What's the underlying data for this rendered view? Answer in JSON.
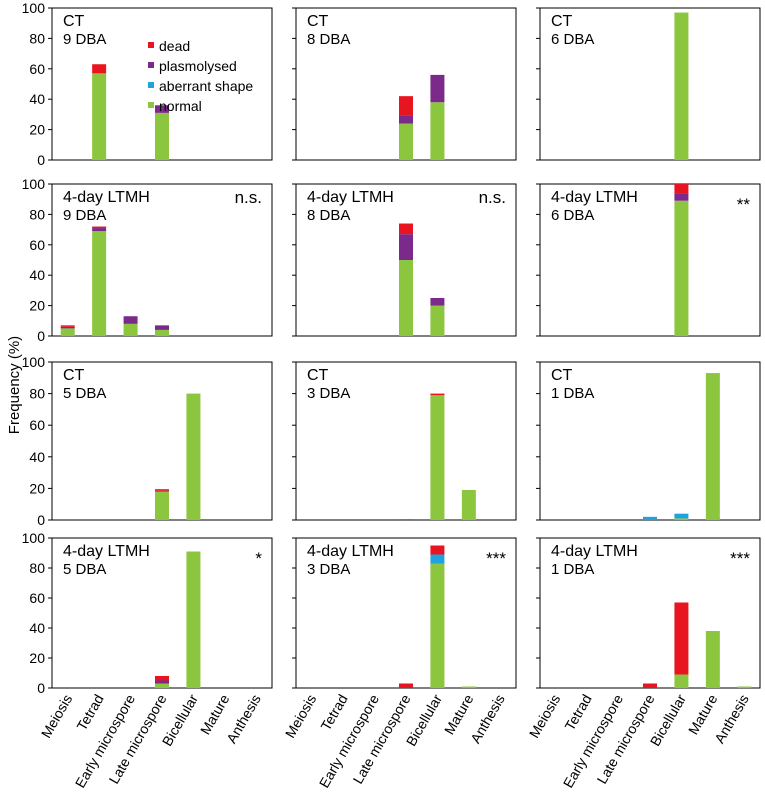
{
  "figure": {
    "ylabel": "Frequency (%)",
    "stage_labels": [
      "Meiosis",
      "Tetrad",
      "Early microspore",
      "Late microspore",
      "Bicellular",
      "Mature",
      "Anthesis"
    ],
    "legend": [
      {
        "key": "dead",
        "label": "dead",
        "color": "#e8141f"
      },
      {
        "key": "plasmolysed",
        "label": "plasmolysed",
        "color": "#7b2a8c"
      },
      {
        "key": "aberrant",
        "label": "aberrant shape",
        "color": "#1fa3e0"
      },
      {
        "key": "normal",
        "label": "normal",
        "color": "#8cc63f"
      }
    ]
  },
  "chart_data": [
    {
      "type": "bar",
      "stacked": true,
      "treatment": "CT",
      "time": "9 DBA",
      "significance": "",
      "ylim": [
        0,
        100
      ],
      "yticks": [
        0,
        20,
        40,
        60,
        80,
        100
      ],
      "categories": [
        "Meiosis",
        "Tetrad",
        "Early microspore",
        "Late microspore",
        "Bicellular",
        "Mature",
        "Anthesis"
      ],
      "series": [
        {
          "name": "normal",
          "values": [
            0,
            57,
            0,
            31,
            0,
            0,
            0
          ]
        },
        {
          "name": "aberrant shape",
          "values": [
            0,
            0,
            0,
            0,
            0,
            0,
            0
          ]
        },
        {
          "name": "plasmolysed",
          "values": [
            0,
            0,
            0,
            5,
            0,
            0,
            0
          ]
        },
        {
          "name": "dead",
          "values": [
            0,
            6,
            0,
            0,
            0,
            0,
            0
          ]
        }
      ]
    },
    {
      "type": "bar",
      "stacked": true,
      "treatment": "CT",
      "time": "8 DBA",
      "significance": "",
      "ylim": [
        0,
        100
      ],
      "yticks": [
        0,
        20,
        40,
        60,
        80,
        100
      ],
      "categories": [
        "Meiosis",
        "Tetrad",
        "Early microspore",
        "Late microspore",
        "Bicellular",
        "Mature",
        "Anthesis"
      ],
      "series": [
        {
          "name": "normal",
          "values": [
            0,
            0,
            0,
            24,
            38,
            0,
            0
          ]
        },
        {
          "name": "aberrant shape",
          "values": [
            0,
            0,
            0,
            0,
            0,
            0,
            0
          ]
        },
        {
          "name": "plasmolysed",
          "values": [
            0,
            0,
            0,
            5,
            18,
            0,
            0
          ]
        },
        {
          "name": "dead",
          "values": [
            0,
            0,
            0,
            13,
            0,
            0,
            0
          ]
        }
      ]
    },
    {
      "type": "bar",
      "stacked": true,
      "treatment": "CT",
      "time": "6 DBA",
      "significance": "",
      "ylim": [
        0,
        100
      ],
      "yticks": [
        0,
        20,
        40,
        60,
        80,
        100
      ],
      "categories": [
        "Meiosis",
        "Tetrad",
        "Early microspore",
        "Late microspore",
        "Bicellular",
        "Mature",
        "Anthesis"
      ],
      "series": [
        {
          "name": "normal",
          "values": [
            0,
            0,
            0,
            0,
            97,
            0,
            0
          ]
        },
        {
          "name": "aberrant shape",
          "values": [
            0,
            0,
            0,
            0,
            0,
            0,
            0
          ]
        },
        {
          "name": "plasmolysed",
          "values": [
            0,
            0,
            0,
            0,
            0,
            0,
            0
          ]
        },
        {
          "name": "dead",
          "values": [
            0,
            0,
            0,
            0,
            0,
            0,
            0
          ]
        }
      ]
    },
    {
      "type": "bar",
      "stacked": true,
      "treatment": "4-day LTMH",
      "time": "9 DBA",
      "significance": "n.s.",
      "ylim": [
        0,
        100
      ],
      "yticks": [
        0,
        20,
        40,
        60,
        80,
        100
      ],
      "categories": [
        "Meiosis",
        "Tetrad",
        "Early microspore",
        "Late microspore",
        "Bicellular",
        "Mature",
        "Anthesis"
      ],
      "series": [
        {
          "name": "normal",
          "values": [
            5,
            69,
            8,
            4,
            0,
            0,
            0
          ]
        },
        {
          "name": "aberrant shape",
          "values": [
            0,
            0,
            0,
            0,
            0,
            0,
            0
          ]
        },
        {
          "name": "plasmolysed",
          "values": [
            1,
            2,
            5,
            3,
            0,
            0,
            0
          ]
        },
        {
          "name": "dead",
          "values": [
            1,
            1,
            0,
            0,
            0,
            0,
            0
          ]
        }
      ]
    },
    {
      "type": "bar",
      "stacked": true,
      "treatment": "4-day LTMH",
      "time": "8 DBA",
      "significance": "n.s.",
      "ylim": [
        0,
        100
      ],
      "yticks": [
        0,
        20,
        40,
        60,
        80,
        100
      ],
      "categories": [
        "Meiosis",
        "Tetrad",
        "Early microspore",
        "Late microspore",
        "Bicellular",
        "Mature",
        "Anthesis"
      ],
      "series": [
        {
          "name": "normal",
          "values": [
            0,
            0,
            0,
            50,
            20,
            0,
            0
          ]
        },
        {
          "name": "aberrant shape",
          "values": [
            0,
            0,
            0,
            0,
            0,
            0,
            0
          ]
        },
        {
          "name": "plasmolysed",
          "values": [
            0,
            0,
            0,
            17,
            5,
            0,
            0
          ]
        },
        {
          "name": "dead",
          "values": [
            0,
            0,
            0,
            7,
            0,
            0,
            0
          ]
        }
      ]
    },
    {
      "type": "bar",
      "stacked": true,
      "treatment": "4-day LTMH",
      "time": "6 DBA",
      "significance": "**",
      "ylim": [
        0,
        100
      ],
      "yticks": [
        0,
        20,
        40,
        60,
        80,
        100
      ],
      "categories": [
        "Meiosis",
        "Tetrad",
        "Early microspore",
        "Late microspore",
        "Bicellular",
        "Mature",
        "Anthesis"
      ],
      "series": [
        {
          "name": "normal",
          "values": [
            0,
            0,
            0,
            0,
            89,
            0,
            0
          ]
        },
        {
          "name": "aberrant shape",
          "values": [
            0,
            0,
            0,
            0,
            0,
            0,
            0
          ]
        },
        {
          "name": "plasmolysed",
          "values": [
            0,
            0,
            0,
            0,
            5,
            0,
            0
          ]
        },
        {
          "name": "dead",
          "values": [
            0,
            0,
            0,
            0,
            6,
            0,
            0
          ]
        }
      ]
    },
    {
      "type": "bar",
      "stacked": true,
      "treatment": "CT",
      "time": "5 DBA",
      "significance": "",
      "ylim": [
        0,
        100
      ],
      "yticks": [
        0,
        20,
        40,
        60,
        80,
        100
      ],
      "categories": [
        "Meiosis",
        "Tetrad",
        "Early microspore",
        "Late microspore",
        "Bicellular",
        "Mature",
        "Anthesis"
      ],
      "series": [
        {
          "name": "normal",
          "values": [
            0,
            0,
            0,
            18,
            80,
            0,
            0
          ]
        },
        {
          "name": "aberrant shape",
          "values": [
            0,
            0,
            0,
            0,
            0,
            0,
            0
          ]
        },
        {
          "name": "plasmolysed",
          "values": [
            0,
            0,
            0,
            0.5,
            0,
            0,
            0
          ]
        },
        {
          "name": "dead",
          "values": [
            0,
            0,
            0,
            1,
            0,
            0,
            0
          ]
        }
      ]
    },
    {
      "type": "bar",
      "stacked": true,
      "treatment": "CT",
      "time": "3 DBA",
      "significance": "",
      "ylim": [
        0,
        100
      ],
      "yticks": [
        0,
        20,
        40,
        60,
        80,
        100
      ],
      "categories": [
        "Meiosis",
        "Tetrad",
        "Early microspore",
        "Late microspore",
        "Bicellular",
        "Mature",
        "Anthesis"
      ],
      "series": [
        {
          "name": "normal",
          "values": [
            0,
            0,
            0,
            0,
            79,
            19,
            0
          ]
        },
        {
          "name": "aberrant shape",
          "values": [
            0,
            0,
            0,
            0,
            0,
            0,
            0
          ]
        },
        {
          "name": "plasmolysed",
          "values": [
            0,
            0,
            0,
            0,
            0,
            0,
            0
          ]
        },
        {
          "name": "dead",
          "values": [
            0,
            0,
            0,
            0.5,
            1,
            0,
            0
          ]
        }
      ]
    },
    {
      "type": "bar",
      "stacked": true,
      "treatment": "CT",
      "time": "1 DBA",
      "significance": "",
      "ylim": [
        0,
        100
      ],
      "yticks": [
        0,
        20,
        40,
        60,
        80,
        100
      ],
      "categories": [
        "Meiosis",
        "Tetrad",
        "Early microspore",
        "Late microspore",
        "Bicellular",
        "Mature",
        "Anthesis"
      ],
      "series": [
        {
          "name": "normal",
          "values": [
            0,
            0,
            0,
            0,
            1,
            93,
            0
          ]
        },
        {
          "name": "aberrant shape",
          "values": [
            0,
            0,
            0,
            2,
            3,
            0,
            0
          ]
        },
        {
          "name": "plasmolysed",
          "values": [
            0,
            0,
            0,
            0,
            0,
            0,
            0
          ]
        },
        {
          "name": "dead",
          "values": [
            0,
            0,
            0,
            0,
            0,
            0,
            0
          ]
        }
      ]
    },
    {
      "type": "bar",
      "stacked": true,
      "treatment": "4-day LTMH",
      "time": "5 DBA",
      "significance": "*",
      "ylim": [
        0,
        100
      ],
      "yticks": [
        0,
        20,
        40,
        60,
        80,
        100
      ],
      "categories": [
        "Meiosis",
        "Tetrad",
        "Early microspore",
        "Late microspore",
        "Bicellular",
        "Mature",
        "Anthesis"
      ],
      "series": [
        {
          "name": "normal",
          "values": [
            0,
            0,
            0,
            3,
            91,
            0,
            0
          ]
        },
        {
          "name": "aberrant shape",
          "values": [
            0,
            0,
            0,
            0,
            0,
            0,
            0
          ]
        },
        {
          "name": "plasmolysed",
          "values": [
            0,
            0,
            0,
            2,
            0,
            0,
            0
          ]
        },
        {
          "name": "dead",
          "values": [
            0,
            0,
            0,
            3,
            0,
            0,
            0
          ]
        }
      ]
    },
    {
      "type": "bar",
      "stacked": true,
      "treatment": "4-day LTMH",
      "time": "3 DBA",
      "significance": "***",
      "ylim": [
        0,
        100
      ],
      "yticks": [
        0,
        20,
        40,
        60,
        80,
        100
      ],
      "categories": [
        "Meiosis",
        "Tetrad",
        "Early microspore",
        "Late microspore",
        "Bicellular",
        "Mature",
        "Anthesis"
      ],
      "series": [
        {
          "name": "normal",
          "values": [
            0,
            0,
            0,
            0,
            83,
            1,
            0
          ]
        },
        {
          "name": "aberrant shape",
          "values": [
            0,
            0,
            0,
            0,
            6,
            0,
            0
          ]
        },
        {
          "name": "plasmolysed",
          "values": [
            0,
            0,
            0,
            0,
            0,
            0,
            0
          ]
        },
        {
          "name": "dead",
          "values": [
            0,
            0,
            0,
            3,
            6,
            0,
            0
          ]
        }
      ]
    },
    {
      "type": "bar",
      "stacked": true,
      "treatment": "4-day LTMH",
      "time": "1 DBA",
      "significance": "***",
      "ylim": [
        0,
        100
      ],
      "yticks": [
        0,
        20,
        40,
        60,
        80,
        100
      ],
      "categories": [
        "Meiosis",
        "Tetrad",
        "Early microspore",
        "Late microspore",
        "Bicellular",
        "Mature",
        "Anthesis"
      ],
      "series": [
        {
          "name": "normal",
          "values": [
            0,
            0,
            0,
            0,
            9,
            38,
            1
          ]
        },
        {
          "name": "aberrant shape",
          "values": [
            0,
            0,
            0,
            0,
            0,
            0,
            0
          ]
        },
        {
          "name": "plasmolysed",
          "values": [
            0,
            0,
            0,
            0,
            0,
            0,
            0
          ]
        },
        {
          "name": "dead",
          "values": [
            0,
            0,
            0,
            3,
            48,
            0,
            0
          ]
        }
      ]
    }
  ]
}
